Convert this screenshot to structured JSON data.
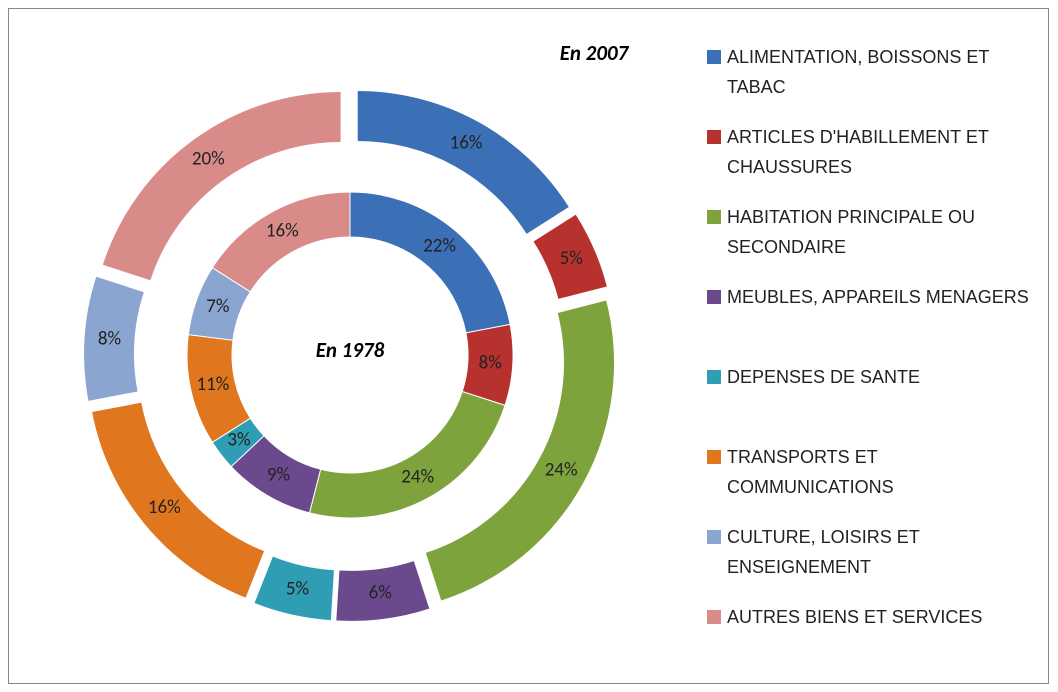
{
  "chart_data": {
    "type": "doughnut",
    "categories": [
      "ALIMENTATION, BOISSONS ET TABAC",
      "ARTICLES D'HABILLEMENT ET CHAUSSURES",
      "HABITATION PRINCIPALE OU SECONDAIRE",
      "MEUBLES, APPAREILS MENAGERS",
      "DEPENSES DE SANTE",
      "TRANSPORTS ET COMMUNICATIONS",
      "CULTURE, LOISIRS ET ENSEIGNEMENT",
      "AUTRES BIENS ET SERVICES"
    ],
    "colors": [
      "#3b6fb6",
      "#b7322f",
      "#7fa33c",
      "#6a4a8d",
      "#2f9db4",
      "#e0771f",
      "#8aa5cf",
      "#d98b8a"
    ],
    "legend": "right",
    "series": [
      {
        "name": "En 1978",
        "values": [
          22,
          8,
          24,
          9,
          3,
          11,
          7,
          16
        ],
        "value_labels": [
          "22%",
          "8%",
          "24%",
          "9%",
          "3%",
          "11%",
          "7%",
          "16%"
        ]
      },
      {
        "name": "En 2007",
        "values": [
          16,
          5,
          24,
          6,
          5,
          16,
          8,
          20
        ],
        "value_labels": [
          "16%",
          "5%",
          "24%",
          "6%",
          "5%",
          "16%",
          "8%",
          "20%"
        ]
      }
    ]
  }
}
